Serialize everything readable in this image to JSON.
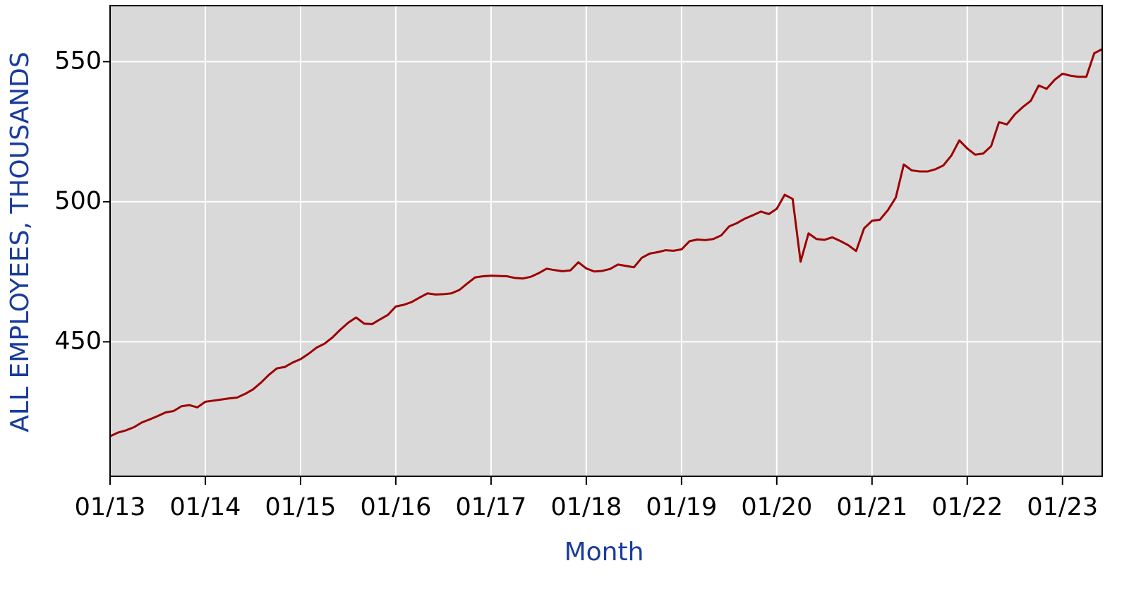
{
  "chart_data": {
    "type": "line",
    "ylabel": "ALL EMPLOYEES, THOUSANDS",
    "xlabel": "Month",
    "color": "#9e0000",
    "grid": true,
    "x": [
      "01/13",
      "02/13",
      "03/13",
      "04/13",
      "05/13",
      "06/13",
      "07/13",
      "08/13",
      "09/13",
      "10/13",
      "11/13",
      "12/13",
      "01/14",
      "02/14",
      "03/14",
      "04/14",
      "05/14",
      "06/14",
      "07/14",
      "08/14",
      "09/14",
      "10/14",
      "11/14",
      "12/14",
      "01/15",
      "02/15",
      "03/15",
      "04/15",
      "05/15",
      "06/15",
      "07/15",
      "08/15",
      "09/15",
      "10/15",
      "11/15",
      "12/15",
      "01/16",
      "02/16",
      "03/16",
      "04/16",
      "05/16",
      "06/16",
      "07/16",
      "08/16",
      "09/16",
      "10/16",
      "11/16",
      "12/16",
      "01/17",
      "02/17",
      "03/17",
      "04/17",
      "05/17",
      "06/17",
      "07/17",
      "08/17",
      "09/17",
      "10/17",
      "11/17",
      "12/17",
      "01/18",
      "02/18",
      "03/18",
      "04/18",
      "05/18",
      "06/18",
      "07/18",
      "08/18",
      "09/18",
      "10/18",
      "11/18",
      "12/18",
      "01/19",
      "02/19",
      "03/19",
      "04/19",
      "05/19",
      "06/19",
      "07/19",
      "08/19",
      "09/19",
      "10/19",
      "11/19",
      "12/19",
      "01/20",
      "02/20",
      "03/20",
      "04/20",
      "05/20",
      "06/20",
      "07/20",
      "08/20",
      "09/20",
      "10/20",
      "11/20",
      "12/20",
      "01/21",
      "02/21",
      "03/21",
      "04/21",
      "05/21",
      "06/21",
      "07/21",
      "08/21",
      "09/21",
      "10/21",
      "11/21",
      "12/21",
      "01/22",
      "02/22",
      "03/22",
      "04/22",
      "05/22",
      "06/22",
      "07/22",
      "08/22",
      "09/22",
      "10/22",
      "11/22",
      "12/22",
      "01/23",
      "02/23",
      "03/23",
      "04/23",
      "05/23",
      "06/23"
    ],
    "values": [
      416.3,
      417.6,
      418.4,
      419.5,
      421.2,
      422.3,
      423.5,
      424.8,
      425.3,
      427.0,
      427.4,
      426.6,
      428.6,
      429.0,
      429.4,
      429.8,
      430.1,
      431.4,
      433.0,
      435.4,
      438.2,
      440.5,
      441.0,
      442.6,
      443.8,
      445.7,
      447.9,
      449.3,
      451.5,
      454.3,
      456.8,
      458.7,
      456.5,
      456.3,
      458.0,
      459.6,
      462.6,
      463.2,
      464.2,
      465.8,
      467.3,
      466.9,
      467.0,
      467.3,
      468.5,
      470.8,
      473.0,
      473.4,
      473.6,
      473.5,
      473.4,
      472.8,
      472.6,
      473.2,
      474.5,
      476.1,
      475.6,
      475.2,
      475.5,
      478.4,
      476.2,
      475.1,
      475.3,
      476.0,
      477.6,
      477.1,
      476.6,
      480.0,
      481.5,
      482.0,
      482.7,
      482.5,
      483.0,
      485.9,
      486.5,
      486.3,
      486.7,
      488.0,
      491.2,
      492.4,
      494.0,
      495.2,
      496.5,
      495.6,
      497.5,
      502.5,
      501.0,
      478.6,
      488.7,
      486.7,
      486.4,
      487.3,
      486.0,
      484.5,
      482.4,
      490.5,
      493.2,
      493.6,
      497.0,
      501.5,
      513.3,
      511.2,
      510.8,
      510.8,
      511.6,
      513.0,
      516.5,
      521.9,
      519.0,
      516.8,
      517.2,
      519.8,
      528.4,
      527.6,
      531.2,
      533.8,
      536.0,
      541.5,
      540.3,
      543.5,
      545.7,
      545.0,
      544.6,
      544.6,
      553.0,
      554.5
    ],
    "xlim": [
      "01/13",
      "06/23"
    ],
    "xticks": [
      "01/13",
      "01/14",
      "01/15",
      "01/16",
      "01/17",
      "01/18",
      "01/19",
      "01/20",
      "01/21",
      "01/22",
      "01/23"
    ],
    "ylim": [
      402,
      570
    ],
    "yticks": [
      450,
      500,
      550
    ]
  }
}
